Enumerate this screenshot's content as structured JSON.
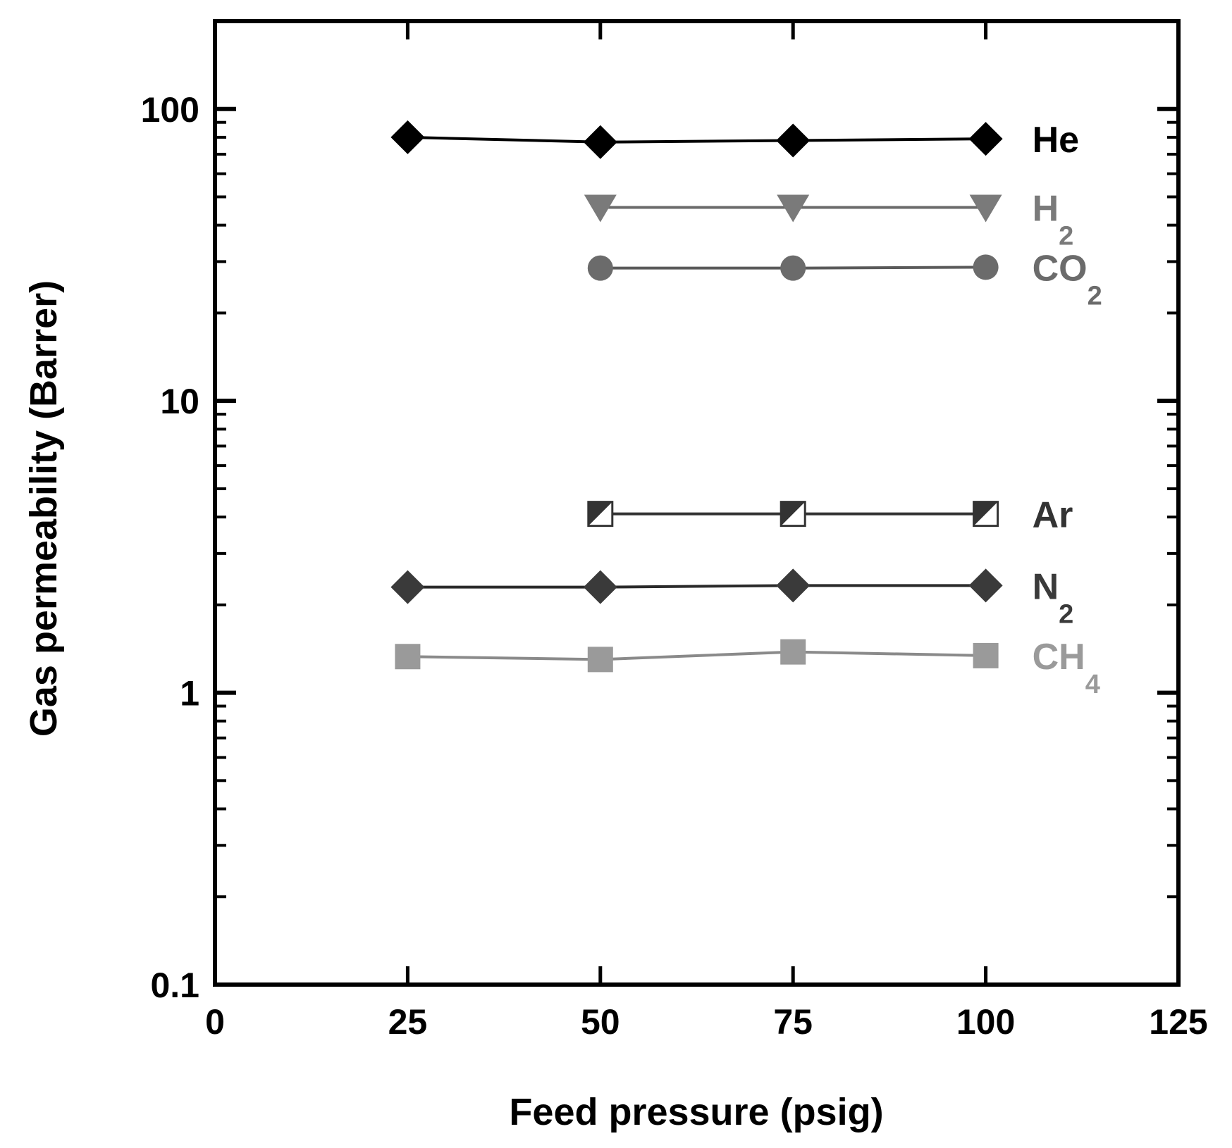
{
  "chart_data": {
    "type": "line",
    "title": "",
    "xlabel": "Feed pressure (psig)",
    "ylabel": "Gas permeability (Barrer)",
    "xlim": [
      0,
      125
    ],
    "ylim": [
      0.1,
      200
    ],
    "yscale": "log",
    "grid": false,
    "legend": "inline labels at right end of each series",
    "x_ticks": [
      0,
      25,
      50,
      75,
      100,
      125
    ],
    "x_tick_labels": [
      "0",
      "25",
      "50",
      "75",
      "100",
      "125"
    ],
    "y_ticks": [
      0.1,
      1,
      10,
      100
    ],
    "y_tick_labels": [
      "0.1",
      "1",
      "10",
      "100"
    ],
    "series": [
      {
        "name": "He",
        "label_main": "He",
        "label_sub": "",
        "marker": "diamond",
        "color": "#000000",
        "line_color": "#000000",
        "x": [
          25,
          50,
          75,
          100
        ],
        "y": [
          80,
          77,
          78,
          79
        ]
      },
      {
        "name": "H2",
        "label_main": "H",
        "label_sub": "2",
        "marker": "triangle-down",
        "color": "#7a7a7a",
        "line_color": "#6a6a6a",
        "x": [
          50,
          75,
          100
        ],
        "y": [
          46,
          46,
          46
        ]
      },
      {
        "name": "CO2",
        "label_main": "CO",
        "label_sub": "2",
        "marker": "circle",
        "color": "#6b6b6b",
        "line_color": "#5a5a5a",
        "x": [
          50,
          75,
          100
        ],
        "y": [
          28.5,
          28.5,
          28.7
        ]
      },
      {
        "name": "Ar",
        "label_main": "Ar",
        "label_sub": "",
        "marker": "half-square",
        "color": "#333333",
        "line_color": "#333333",
        "x": [
          50,
          75,
          100
        ],
        "y": [
          4.1,
          4.1,
          4.1
        ]
      },
      {
        "name": "N2",
        "label_main": "N",
        "label_sub": "2",
        "marker": "diamond",
        "color": "#3a3a3a",
        "line_color": "#2a2a2a",
        "x": [
          25,
          50,
          75,
          100
        ],
        "y": [
          2.3,
          2.3,
          2.33,
          2.33
        ]
      },
      {
        "name": "CH4",
        "label_main": "CH",
        "label_sub": "4",
        "marker": "square",
        "color": "#9a9a9a",
        "line_color": "#8a8a8a",
        "x": [
          25,
          50,
          75,
          100
        ],
        "y": [
          1.33,
          1.3,
          1.38,
          1.34
        ]
      }
    ]
  }
}
